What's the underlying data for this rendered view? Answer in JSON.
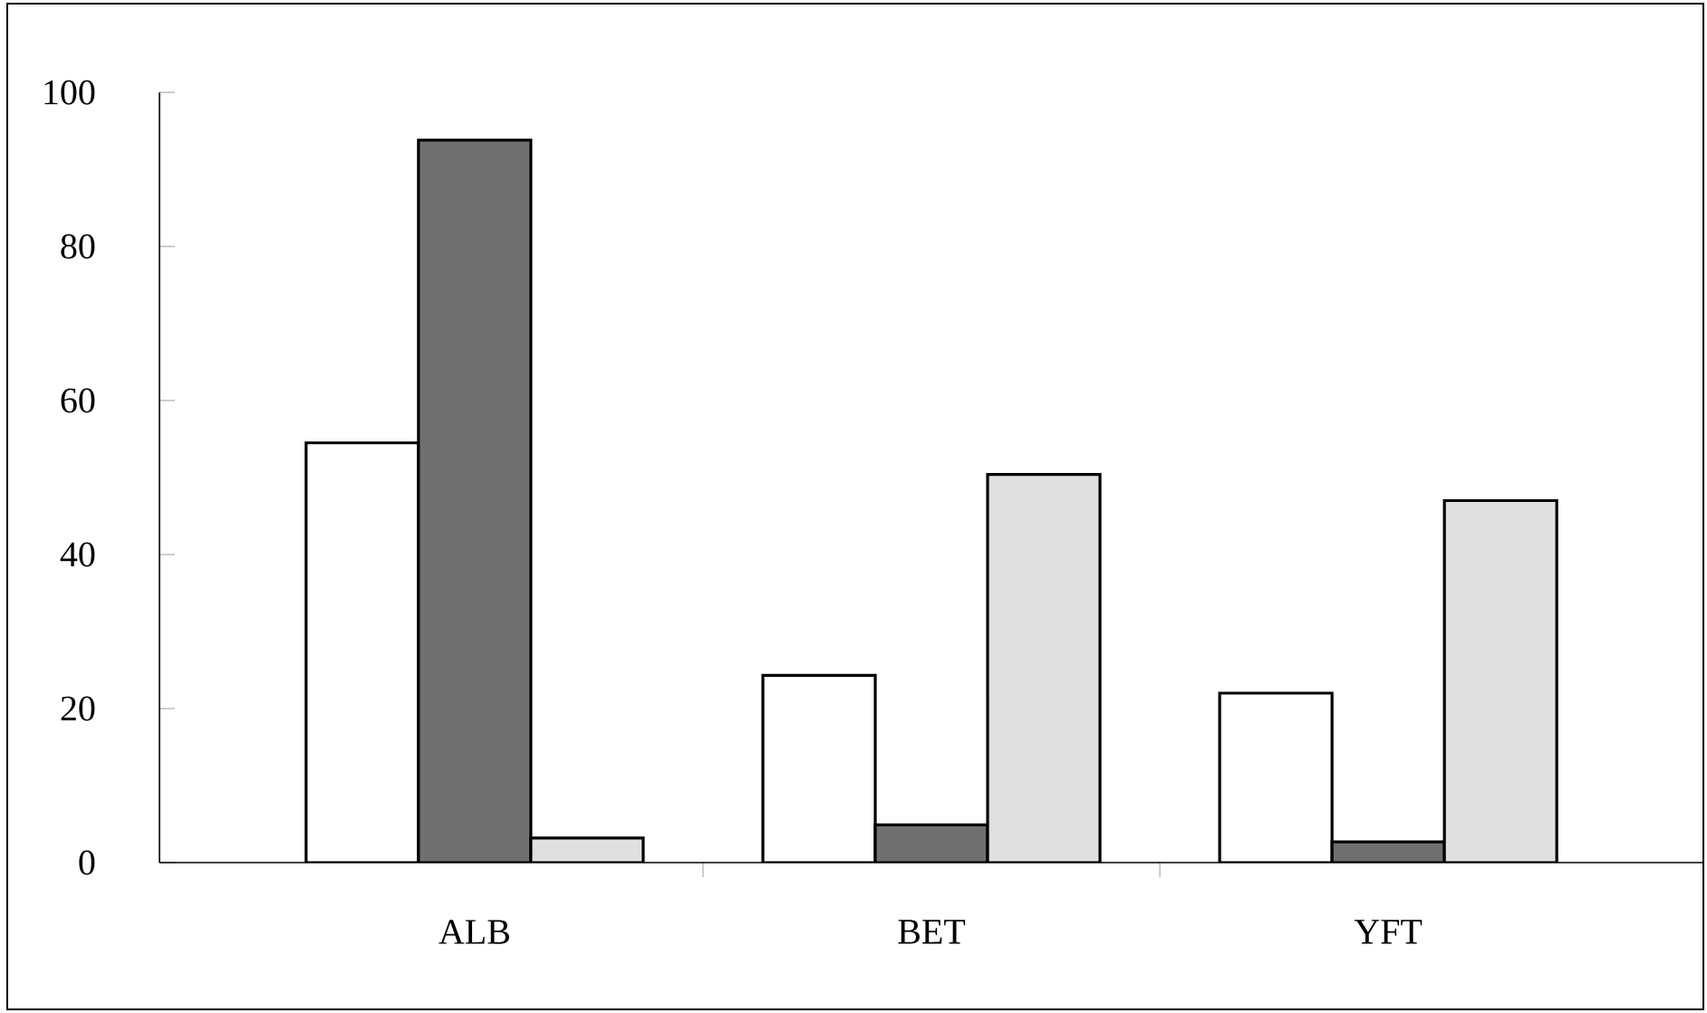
{
  "chart_data": {
    "type": "bar",
    "categories": [
      "ALB",
      "BET",
      "YFT"
    ],
    "series": [
      {
        "color": "#ffffff",
        "values": [
          54.5,
          24.3,
          22
        ]
      },
      {
        "color": "#707070",
        "values": [
          93.8,
          4.9,
          2.7
        ]
      },
      {
        "color": "#e0e0e0",
        "values": [
          3.2,
          50.4,
          47
        ]
      }
    ],
    "ylim": [
      0,
      100
    ],
    "yticks": [
      0,
      20,
      40,
      60,
      80,
      100
    ]
  }
}
